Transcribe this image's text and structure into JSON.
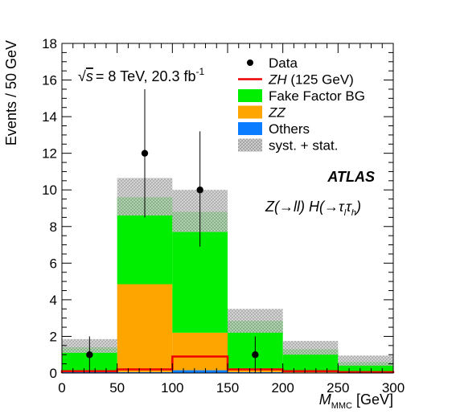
{
  "chart_data": {
    "type": "bar",
    "stacked": true,
    "x_bins": [
      0,
      50,
      100,
      150,
      200,
      250,
      300
    ],
    "xlim": [
      0,
      300
    ],
    "ylim": [
      0,
      18
    ],
    "x_ticks": [
      0,
      50,
      100,
      150,
      200,
      250,
      300
    ],
    "y_ticks": [
      0,
      2,
      4,
      6,
      8,
      10,
      12,
      14,
      16,
      18
    ],
    "xlabel": "M",
    "xlabel_sub": "MMC",
    "xlabel_unit": "[GeV]",
    "ylabel": "Events / 50 GeV",
    "series": [
      {
        "name": "Others",
        "color": "#0a7cff",
        "values": [
          0.05,
          0.05,
          0.15,
          0.05,
          0.03,
          0.02
        ]
      },
      {
        "name": "ZZ",
        "color": "#ffa500",
        "values": [
          0.1,
          4.8,
          2.05,
          0.15,
          0.05,
          0.03
        ]
      },
      {
        "name": "Fake Factor BG",
        "color": "#00ee00",
        "values": [
          1.25,
          4.75,
          6.6,
          2.65,
          1.22,
          0.55
        ]
      }
    ],
    "signal": {
      "name": "ZH",
      "label_suffix": "(125 GeV)",
      "color": "#ee0000",
      "values": [
        0.1,
        0.2,
        0.9,
        0.2,
        0.1,
        0.05
      ]
    },
    "uncertainty": {
      "name": "syst. + stat.",
      "up": [
        1.85,
        10.65,
        10.0,
        3.5,
        1.75,
        0.95
      ],
      "down": [
        1.1,
        8.6,
        7.7,
        2.2,
        1.0,
        0.4
      ]
    },
    "data": {
      "name": "Data",
      "x": [
        25,
        75,
        125,
        175
      ],
      "y": [
        1,
        12,
        10,
        1
      ],
      "err_lo": [
        1,
        3.5,
        3.1,
        1
      ],
      "err_hi": [
        1,
        3.5,
        3.2,
        1
      ]
    },
    "legend_placement": "top-right",
    "grid": false
  },
  "labels": {
    "energy": "= 8 TeV, 20.3 fb",
    "energy_sup": "-1",
    "sqrt_s": "s",
    "atlas": "ATLAS",
    "process": "Z(→ll) H(→τ",
    "process_sub1": "l",
    "process_tau": "τ",
    "process_sub2": "h",
    "process_close": ")"
  }
}
